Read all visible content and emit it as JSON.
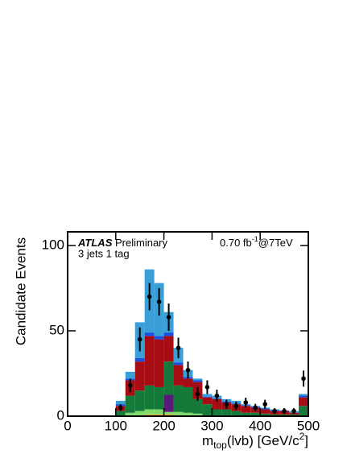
{
  "chart_data": {
    "type": "stacked-histogram",
    "ylabel": "Candidate Events",
    "xlabel": [
      "m",
      "top",
      "(lvb) [GeV/c",
      "2",
      "]"
    ],
    "experiment": "ATLAS",
    "status": "Preliminary",
    "selection": "3 jets 1 tag",
    "lumi": [
      "0.70 fb",
      "-1",
      "@7TeV"
    ],
    "bins": [
      100,
      120,
      140,
      160,
      180,
      200,
      220,
      240,
      260,
      280,
      300,
      320,
      340,
      360,
      380,
      400,
      420,
      440,
      460,
      480,
      500
    ],
    "series": [
      {
        "color": "#f0a020",
        "values": [
          0,
          0.5,
          0.5,
          1,
          1,
          1,
          0.5,
          0.5,
          0.5,
          0,
          0,
          0,
          0,
          0,
          0,
          0,
          0,
          0,
          0,
          0
        ]
      },
      {
        "color": "#7fd86b",
        "values": [
          0.5,
          1.5,
          2.5,
          3,
          3,
          1.5,
          2,
          1.5,
          1,
          0.5,
          0.5,
          0.5,
          0.5,
          0,
          0,
          0,
          0,
          0,
          0,
          0.5
        ]
      },
      {
        "color": "#5a1a7a",
        "values": [
          0,
          0,
          0,
          0,
          0,
          10,
          0,
          0,
          0,
          0,
          0,
          0,
          0,
          0,
          0,
          0,
          0,
          0,
          0,
          0
        ]
      },
      {
        "color": "#137a3a",
        "values": [
          2.5,
          10,
          12,
          14,
          13,
          19.5,
          15.5,
          15,
          8.5,
          6.5,
          3.5,
          3.5,
          2.5,
          2,
          2,
          1.5,
          1,
          1,
          1,
          5.5
        ]
      },
      {
        "color": "#a50d12",
        "values": [
          3,
          9,
          17,
          29,
          28,
          15,
          12,
          5,
          10,
          4,
          6,
          4,
          4,
          4,
          3,
          2.5,
          2,
          2,
          1,
          5
        ]
      },
      {
        "color": "#1a4fe0",
        "values": [
          1,
          1,
          2,
          2,
          2,
          2,
          1.5,
          1,
          1,
          0.5,
          0.5,
          0.5,
          0.5,
          0.5,
          0.5,
          0.5,
          0.5,
          0.3,
          0.3,
          1
        ]
      },
      {
        "color": "#3a9fd6",
        "values": [
          2,
          4,
          21,
          37,
          31,
          12,
          8.5,
          4,
          1,
          1.5,
          1.5,
          1.5,
          1.5,
          0.5,
          0.5,
          0.5,
          0.5,
          0,
          0.7,
          1
        ]
      }
    ],
    "points": {
      "x": [
        110,
        130,
        150,
        170,
        190,
        210,
        230,
        250,
        270,
        290,
        310,
        330,
        350,
        370,
        390,
        410,
        430,
        450,
        470,
        490
      ],
      "values": [
        5,
        18,
        45,
        70,
        67,
        58,
        40,
        27,
        13,
        17,
        12,
        7,
        6,
        8,
        5,
        7,
        3,
        3,
        3,
        22
      ],
      "errors": [
        2,
        4,
        7,
        8,
        8,
        8,
        6,
        5,
        4,
        4,
        3.5,
        2.6,
        2.5,
        2.8,
        2.2,
        2.6,
        1.7,
        1.7,
        1.7,
        4.7
      ]
    },
    "xlim": [
      0,
      500
    ],
    "xticks": [
      0,
      100,
      200,
      300,
      400,
      500
    ],
    "ylim": [
      0,
      108
    ],
    "yticks": [
      0,
      50,
      100
    ]
  }
}
